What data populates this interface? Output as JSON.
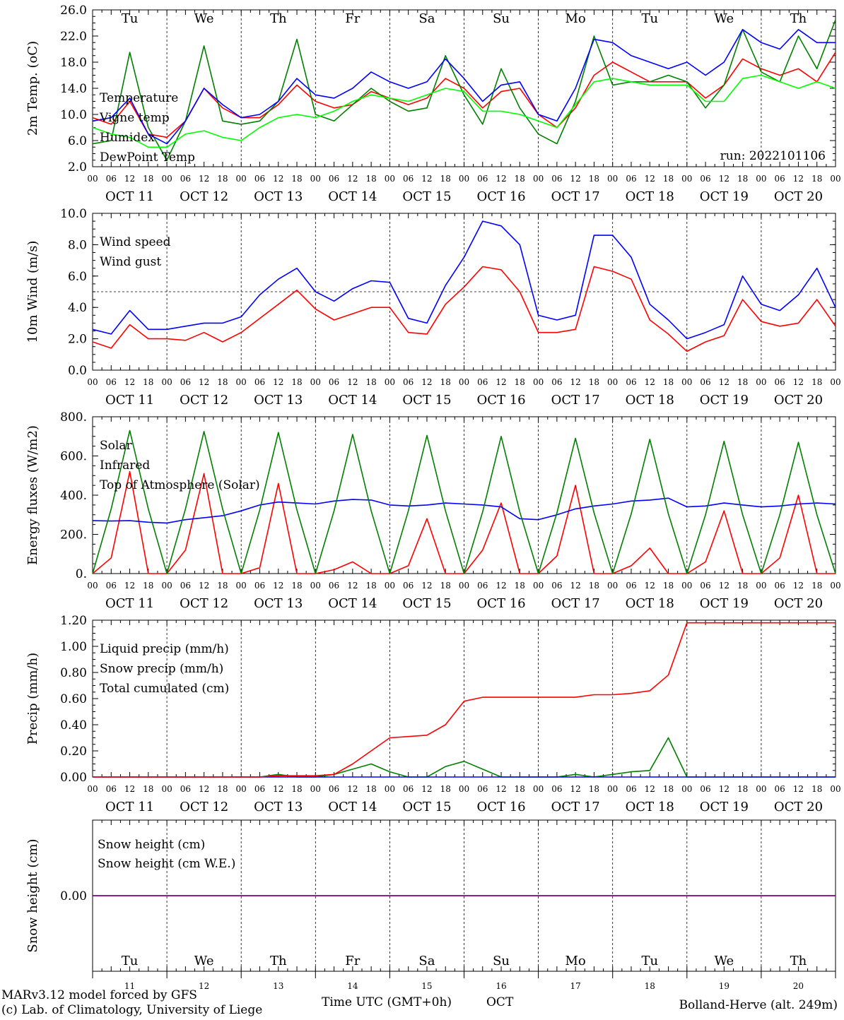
{
  "run_label": "run: 2022101106",
  "footer": {
    "model": "MARv3.12 model forced by GFS",
    "lab": "(c) Lab. of Climatology, University of Liege",
    "xlabel": "Time UTC (GMT+0h)",
    "month": "OCT",
    "location": "Bolland-Herve (alt. 249m)"
  },
  "days": [
    {
      "date": "OCT 11",
      "abbr": "Tu",
      "num": "11",
      "weekend": false
    },
    {
      "date": "OCT 12",
      "abbr": "We",
      "num": "12",
      "weekend": false
    },
    {
      "date": "OCT 13",
      "abbr": "Th",
      "num": "13",
      "weekend": false
    },
    {
      "date": "OCT 14",
      "abbr": "Fr",
      "num": "14",
      "weekend": false
    },
    {
      "date": "OCT 15",
      "abbr": "Sa",
      "num": "15",
      "weekend": true
    },
    {
      "date": "OCT 16",
      "abbr": "Su",
      "num": "16",
      "weekend": true
    },
    {
      "date": "OCT 17",
      "abbr": "Mo",
      "num": "17",
      "weekend": false
    },
    {
      "date": "OCT 18",
      "abbr": "Tu",
      "num": "18",
      "weekend": false
    },
    {
      "date": "OCT 19",
      "abbr": "We",
      "num": "19",
      "weekend": false
    },
    {
      "date": "OCT 20",
      "abbr": "Th",
      "num": "20",
      "weekend": false
    }
  ],
  "hour_ticks": [
    "00",
    "06",
    "12",
    "18"
  ],
  "end_hour": "00",
  "colors": {
    "red": "#ff0000",
    "green": "#008000",
    "blue": "#0000ff",
    "lightgreen": "#00ff00",
    "purple": "#800080",
    "weekend": "#ff0000",
    "location": "#3a3aff"
  },
  "chart_data": [
    {
      "id": "temp",
      "type": "line",
      "ylabel": "2m Temp. (oC)",
      "ylim": [
        2,
        26
      ],
      "yticks": [
        "2.0",
        "6.0",
        "10.0",
        "14.0",
        "18.0",
        "22.0",
        "26.0"
      ],
      "x": [
        0,
        6,
        12,
        18,
        24,
        30,
        36,
        42,
        48,
        54,
        60,
        66,
        72,
        78,
        84,
        90,
        96,
        102,
        108,
        114,
        120,
        126,
        132,
        138,
        144,
        150,
        156,
        162,
        168,
        174,
        180,
        186,
        192,
        198,
        204,
        210,
        216,
        222,
        228,
        234,
        240
      ],
      "series": [
        {
          "name": "Temperature",
          "color": "red",
          "values": [
            9.5,
            8.5,
            12,
            7,
            6.5,
            9,
            14,
            11,
            9.5,
            9.5,
            11.5,
            14.5,
            12,
            11,
            11.5,
            13.5,
            12.5,
            11.5,
            12.5,
            15.5,
            14,
            11,
            13.5,
            14,
            10,
            8,
            11,
            16,
            18,
            16.5,
            15,
            15,
            15,
            12.5,
            14.5,
            18.5,
            17,
            16,
            17,
            15,
            19.5
          ]
        },
        {
          "name": "Vigne temp",
          "color": "green",
          "values": [
            5.5,
            6,
            19.5,
            8,
            3,
            9,
            20.5,
            9,
            8.5,
            9,
            12,
            21.5,
            10,
            9,
            11.5,
            14,
            12,
            10.5,
            11,
            19,
            13,
            8.5,
            17,
            11,
            7,
            5.5,
            12,
            22,
            14.5,
            15,
            15,
            16,
            15,
            11,
            14.5,
            23,
            16.5,
            15,
            22,
            17,
            24.5
          ]
        },
        {
          "name": "Humidex",
          "color": "blue",
          "values": [
            9,
            9.5,
            12.5,
            7,
            5.5,
            9,
            14,
            11.5,
            9.5,
            10,
            12,
            15.5,
            13,
            12.5,
            14,
            16.5,
            15,
            14,
            15,
            18.5,
            15.5,
            12,
            14.5,
            15,
            10,
            9,
            14,
            21.5,
            21,
            19,
            18,
            17,
            18,
            16,
            18,
            23,
            21,
            20,
            23,
            21,
            21
          ]
        },
        {
          "name": "DewPoint Temp",
          "color": "lightgreen",
          "values": [
            8,
            7,
            6.5,
            5,
            5,
            7,
            7.5,
            6.5,
            6,
            8,
            9.5,
            10,
            9.5,
            10.5,
            12,
            13,
            12.5,
            12,
            13,
            14,
            13.5,
            10.5,
            10.5,
            10,
            9,
            8,
            11.5,
            15,
            15.5,
            15,
            14.5,
            14.5,
            14.5,
            12,
            12,
            15.5,
            16,
            15,
            14,
            15,
            14
          ]
        }
      ]
    },
    {
      "id": "wind",
      "type": "line",
      "ylabel": "10m Wind (m/s)",
      "ylim": [
        0,
        10
      ],
      "yticks": [
        "0.0",
        "2.0",
        "4.0",
        "6.0",
        "8.0",
        "10.0"
      ],
      "ref_line": 5,
      "x": [
        0,
        6,
        12,
        18,
        24,
        30,
        36,
        42,
        48,
        54,
        60,
        66,
        72,
        78,
        84,
        90,
        96,
        102,
        108,
        114,
        120,
        126,
        132,
        138,
        144,
        150,
        156,
        162,
        168,
        174,
        180,
        186,
        192,
        198,
        204,
        210,
        216,
        222,
        228,
        234,
        240
      ],
      "series": [
        {
          "name": "Wind speed",
          "color": "red",
          "values": [
            1.8,
            1.4,
            2.9,
            2,
            2,
            1.9,
            2.4,
            1.8,
            2.4,
            3.3,
            4.2,
            5.1,
            3.9,
            3.2,
            3.6,
            4,
            4,
            2.4,
            2.3,
            4.2,
            5.3,
            6.6,
            6.4,
            5,
            2.4,
            2.4,
            2.6,
            6.6,
            6.3,
            5.8,
            3.2,
            2.3,
            1.2,
            1.8,
            2.2,
            4.5,
            3.1,
            2.8,
            3,
            4.5,
            2.8
          ]
        },
        {
          "name": "Wind gust",
          "color": "blue",
          "values": [
            2.6,
            2.3,
            3.8,
            2.6,
            2.6,
            2.8,
            3,
            3,
            3.4,
            4.8,
            5.8,
            6.5,
            5,
            4.4,
            5.2,
            5.7,
            5.6,
            3.3,
            3,
            5.4,
            7.2,
            9.5,
            9.2,
            8,
            3.5,
            3.2,
            3.5,
            8.6,
            8.6,
            7.2,
            4.2,
            3.2,
            2,
            2.4,
            2.9,
            6,
            4.2,
            3.8,
            4.8,
            6.5,
            4
          ]
        }
      ]
    },
    {
      "id": "energy",
      "type": "line",
      "ylabel": "Energy fluxes (W/m2)",
      "ylim": [
        0,
        800
      ],
      "yticks": [
        "0.",
        "200.",
        "400.",
        "600.",
        "800."
      ],
      "x": [
        0,
        6,
        12,
        18,
        24,
        30,
        36,
        42,
        48,
        54,
        60,
        66,
        72,
        78,
        84,
        90,
        96,
        102,
        108,
        114,
        120,
        126,
        132,
        138,
        144,
        150,
        156,
        162,
        168,
        174,
        180,
        186,
        192,
        198,
        204,
        210,
        216,
        222,
        228,
        234,
        240
      ],
      "series": [
        {
          "name": "Solar",
          "color": "red",
          "values": [
            0,
            80,
            520,
            0,
            0,
            120,
            510,
            0,
            0,
            30,
            460,
            0,
            0,
            20,
            60,
            0,
            0,
            40,
            280,
            0,
            0,
            120,
            360,
            0,
            0,
            90,
            450,
            0,
            0,
            40,
            130,
            0,
            0,
            60,
            320,
            0,
            0,
            80,
            400,
            0,
            0
          ]
        },
        {
          "name": "Infrared",
          "color": "blue",
          "values": [
            270,
            268,
            270,
            262,
            258,
            275,
            285,
            295,
            320,
            350,
            365,
            360,
            355,
            370,
            378,
            375,
            350,
            345,
            350,
            360,
            355,
            350,
            340,
            280,
            275,
            300,
            330,
            345,
            355,
            370,
            375,
            385,
            340,
            345,
            360,
            350,
            340,
            345,
            355,
            360,
            355
          ]
        },
        {
          "name": "Top of Atmosphere (Solar)",
          "color": "green",
          "values": [
            0,
            330,
            730,
            330,
            0,
            330,
            725,
            330,
            0,
            325,
            720,
            325,
            0,
            320,
            710,
            320,
            0,
            320,
            705,
            320,
            0,
            315,
            700,
            315,
            0,
            310,
            690,
            310,
            0,
            305,
            685,
            305,
            0,
            300,
            675,
            300,
            0,
            300,
            670,
            300,
            0
          ]
        }
      ]
    },
    {
      "id": "precip",
      "type": "line",
      "ylabel": "Precip (mm/h)",
      "ylim": [
        0,
        1.2
      ],
      "yticks": [
        "0.00",
        "0.20",
        "0.40",
        "0.60",
        "0.80",
        "1.00",
        "1.20"
      ],
      "x": [
        0,
        6,
        12,
        18,
        24,
        30,
        36,
        42,
        48,
        54,
        60,
        66,
        72,
        78,
        84,
        90,
        96,
        102,
        108,
        114,
        120,
        126,
        132,
        138,
        144,
        150,
        156,
        162,
        168,
        174,
        180,
        186,
        192,
        198,
        204,
        210,
        216,
        222,
        228,
        234,
        240
      ],
      "series": [
        {
          "name": "Liquid precip (mm/h)",
          "color": "green",
          "values": [
            0,
            0,
            0,
            0,
            0,
            0,
            0,
            0,
            0,
            0,
            0.02,
            0,
            0,
            0.02,
            0.06,
            0.1,
            0.04,
            0,
            0,
            0.08,
            0.12,
            0.06,
            0,
            0,
            0,
            0,
            0.02,
            0,
            0.02,
            0.04,
            0.05,
            0.3,
            0,
            0,
            0,
            0,
            0,
            0,
            0,
            0,
            0
          ]
        },
        {
          "name": "Snow precip (mm/h)",
          "color": "blue",
          "values": [
            0,
            0,
            0,
            0,
            0,
            0,
            0,
            0,
            0,
            0,
            0,
            0,
            0,
            0,
            0,
            0,
            0,
            0,
            0,
            0,
            0,
            0,
            0,
            0,
            0,
            0,
            0,
            0,
            0,
            0,
            0,
            0,
            0,
            0,
            0,
            0,
            0,
            0,
            0,
            0,
            0
          ]
        },
        {
          "name": "Total cumulated (cm)",
          "color": "red",
          "values": [
            0,
            0,
            0,
            0,
            0,
            0,
            0,
            0,
            0,
            0,
            0.01,
            0.01,
            0.01,
            0.02,
            0.1,
            0.2,
            0.3,
            0.31,
            0.32,
            0.4,
            0.58,
            0.61,
            0.61,
            0.61,
            0.61,
            0.61,
            0.61,
            0.63,
            0.63,
            0.64,
            0.66,
            0.78,
            1.18,
            1.18,
            1.18,
            1.18,
            1.18,
            1.18,
            1.18,
            1.18,
            1.18
          ]
        }
      ]
    },
    {
      "id": "snow",
      "type": "line",
      "ylabel": "Snow height (cm)",
      "ylim": [
        -1,
        1
      ],
      "yticks": [
        "0.00"
      ],
      "x": [
        0,
        240
      ],
      "series": [
        {
          "name": "Snow height (cm)",
          "color": "red",
          "values": [
            0,
            0
          ]
        },
        {
          "name": "Snow height (cm W.E.)",
          "color": "blue",
          "values": [
            0,
            0
          ]
        }
      ]
    }
  ]
}
